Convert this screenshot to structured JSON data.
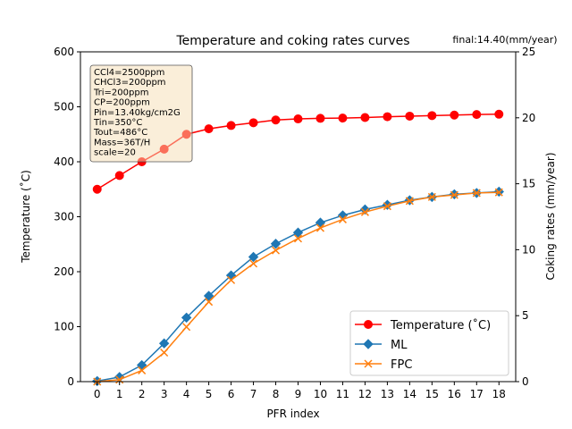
{
  "chart_data": {
    "type": "line",
    "title": "Temperature and coking rates curves",
    "annotation": "final:14.40(mm/year)",
    "xlabel": "PFR index",
    "ylabel_left": "Temperature ($^\\circ$C)",
    "ylabel_left_display": "Temperature (˚C)",
    "ylabel_right": "Coking rates (mm/year)",
    "x": [
      0,
      1,
      2,
      3,
      4,
      5,
      6,
      7,
      8,
      9,
      10,
      11,
      12,
      13,
      14,
      15,
      16,
      17,
      18
    ],
    "xlim": [
      -0.75,
      18.75
    ],
    "ylim_left": [
      0,
      600
    ],
    "ylim_right": [
      0,
      25
    ],
    "yticks_left": [
      0,
      100,
      200,
      300,
      400,
      500,
      600
    ],
    "yticks_right": [
      0,
      5,
      10,
      15,
      20,
      25
    ],
    "infobox": [
      "CCl4=2500ppm",
      "CHCl3=200ppm",
      "Tri=200ppm",
      "CP=200ppm",
      "Pin=13.40kg/cm2G",
      "Tin=350°C",
      "Tout=486°C",
      "Mass=36T/H",
      "scale=20"
    ],
    "legend_position": "lower-right",
    "series": [
      {
        "name": "Temperature (˚C)",
        "axis": "left",
        "color": "#ff0000",
        "marker": "circle",
        "values": [
          350,
          375,
          400,
          423,
          450,
          460,
          466,
          471,
          476,
          478,
          479,
          479.5,
          480.5,
          482,
          483,
          484,
          485,
          486,
          486.5
        ]
      },
      {
        "name": "ML",
        "axis": "right",
        "color": "#1f77b4",
        "marker": "diamond",
        "values": [
          0.04,
          0.35,
          1.25,
          2.9,
          4.85,
          6.5,
          8.05,
          9.45,
          10.45,
          11.3,
          12.05,
          12.6,
          13.05,
          13.4,
          13.75,
          14.0,
          14.2,
          14.3,
          14.4
        ]
      },
      {
        "name": "FPC",
        "axis": "right",
        "color": "#ff7f0e",
        "marker": "x",
        "values": [
          0.0,
          0.15,
          0.85,
          2.2,
          4.15,
          6.05,
          7.7,
          8.95,
          9.95,
          10.85,
          11.65,
          12.3,
          12.85,
          13.3,
          13.7,
          14.0,
          14.15,
          14.3,
          14.35
        ]
      }
    ]
  }
}
